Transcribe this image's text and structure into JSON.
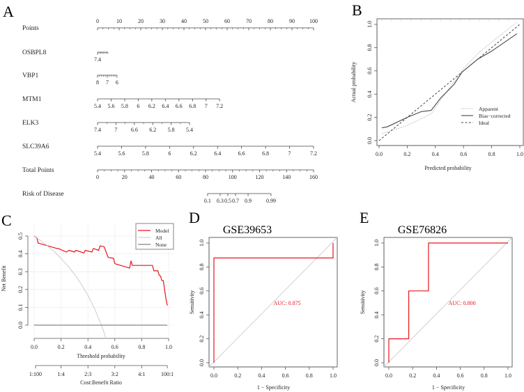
{
  "panel_labels": {
    "A": "A",
    "B": "B",
    "C": "C",
    "D": "D",
    "E": "E"
  },
  "colors": {
    "model": "#e8141b",
    "roc": "#e8141b",
    "diag": "#cccccc",
    "axis": "#444444",
    "all": "#c8c8c8",
    "none": "#999999",
    "apparent": "#b0b0b0",
    "bias": "#333333",
    "ideal": "#444444"
  },
  "chart_data": [
    {
      "type": "nomogram",
      "panel": "A",
      "rows": [
        {
          "name": "Points",
          "scale": "points",
          "labels_above": true,
          "labels": [
            "0",
            "10",
            "20",
            "30",
            "40",
            "50",
            "60",
            "70",
            "80",
            "90",
            "100"
          ],
          "points": [
            0,
            10,
            20,
            30,
            40,
            50,
            60,
            70,
            80,
            90,
            100
          ],
          "minor": [
            2.5,
            5,
            7.5,
            12.5,
            15,
            17.5,
            22.5,
            25,
            27.5,
            32.5,
            35,
            37.5,
            42.5,
            45,
            47.5,
            52.5,
            55,
            57.5,
            62.5,
            65,
            67.5,
            72.5,
            75,
            77.5,
            82.5,
            85,
            87.5,
            92.5,
            95,
            97.5
          ]
        },
        {
          "name": "OSBPL8",
          "scale": "points",
          "labels": [
            "7.4"
          ],
          "points": [
            0
          ],
          "minor": [
            0.7,
            1.4,
            2.1,
            2.8,
            3.5,
            4.2,
            4.8
          ]
        },
        {
          "name": "VBP1",
          "scale": "points",
          "labels": [
            "8",
            "7",
            "6"
          ],
          "points": [
            0,
            4.5,
            9
          ],
          "minor": [
            0.9,
            1.8,
            2.7,
            3.6,
            5.4,
            6.3,
            7.2,
            8.1
          ]
        },
        {
          "name": "MTM1",
          "scale": "points",
          "labels": [
            "5.4",
            "5.6",
            "5.8",
            "6",
            "6.2",
            "6.4",
            "6.6",
            "6.8",
            "7",
            "7.2"
          ],
          "points": [
            0,
            6.28,
            12.56,
            18.84,
            25.12,
            31.4,
            37.68,
            43.96,
            50.24,
            56.5
          ],
          "minor": []
        },
        {
          "name": "ELK3",
          "scale": "points",
          "labels": [
            "7.4",
            "7",
            "6.6",
            "6.2",
            "5.8",
            "5.4"
          ],
          "points": [
            0,
            8.52,
            17.04,
            25.56,
            34.08,
            42.6
          ],
          "minor": [
            4.26,
            12.78,
            21.3,
            29.82,
            38.34
          ]
        },
        {
          "name": "SLC39A6",
          "scale": "points",
          "labels": [
            "5.4",
            "5.6",
            "5.8",
            "6",
            "6.2",
            "6.4",
            "6.6",
            "6.8",
            "7",
            "7.2"
          ],
          "points": [
            0,
            11.11,
            22.22,
            33.33,
            44.44,
            55.56,
            66.67,
            77.78,
            88.89,
            100
          ],
          "minor": []
        },
        {
          "name": "Total Points",
          "scale": "total_points",
          "labels": [
            "0",
            "20",
            "40",
            "60",
            "80",
            "100",
            "120",
            "140",
            "160"
          ],
          "points": [
            0,
            20,
            40,
            60,
            80,
            100,
            120,
            140,
            160
          ],
          "minor": [
            5,
            10,
            15,
            25,
            30,
            35,
            45,
            50,
            55,
            65,
            70,
            75,
            85,
            90,
            95,
            105,
            110,
            115,
            125,
            130,
            135,
            145,
            150,
            155
          ]
        },
        {
          "name": "Risk of Disease",
          "scale": "total_points",
          "labels": [
            "0.1",
            "0.3",
            "0.5",
            "0.7",
            "0.9",
            "0.99"
          ],
          "points": [
            81.5,
            90.8,
            96.5,
            102.2,
            111.5,
            128.5
          ],
          "minor": []
        }
      ],
      "points_range": [
        0,
        100
      ],
      "total_points_range": [
        0,
        160
      ]
    },
    {
      "type": "line",
      "panel": "B",
      "xlabel": "Predicted probability",
      "ylabel": "Actual probability",
      "xlim": [
        0,
        1
      ],
      "ylim": [
        0,
        1
      ],
      "xticks": [
        "0.0",
        "0.2",
        "0.4",
        "0.6",
        "0.8",
        "1.0"
      ],
      "yticks": [
        "0.0",
        "0.2",
        "0.4",
        "0.6",
        "0.8",
        "1.0"
      ],
      "legend_position": "bottom-right",
      "series": [
        {
          "name": "Apparent",
          "style": "dotted",
          "x": [
            0.02,
            0.2,
            0.37,
            0.45,
            0.6,
            0.72,
            0.98
          ],
          "y": [
            0.06,
            0.13,
            0.23,
            0.37,
            0.62,
            0.77,
            1.02
          ]
        },
        {
          "name": "Bias−corrected",
          "style": "solid",
          "x": [
            0.02,
            0.06,
            0.2,
            0.3,
            0.37,
            0.44,
            0.53,
            0.59,
            0.7,
            0.8,
            0.98
          ],
          "y": [
            0.11,
            0.12,
            0.2,
            0.25,
            0.26,
            0.37,
            0.48,
            0.59,
            0.7,
            0.77,
            0.92
          ]
        },
        {
          "name": "Ideal",
          "style": "dashed",
          "x": [
            0,
            1
          ],
          "y": [
            0,
            1
          ]
        }
      ]
    },
    {
      "type": "line",
      "panel": "C",
      "xlabel": "Threshold probability",
      "ylabel": "Net Benefit",
      "xlim": [
        0,
        1
      ],
      "ylim": [
        0,
        0.5
      ],
      "xticks": [
        "0.0",
        "0.2",
        "0.4",
        "0.6",
        "0.8",
        "1.0"
      ],
      "yticks": [
        "0.0",
        "0.1",
        "0.2",
        "0.3",
        "0.4",
        "0.5"
      ],
      "secondary_axis": {
        "label": "Cost:Benefit Ratio",
        "ticks": [
          "1:100",
          "1:4",
          "2:3",
          "3:2",
          "4:1",
          "100:1"
        ],
        "at": [
          0.01,
          0.2,
          0.4,
          0.6,
          0.8,
          0.99
        ]
      },
      "legend_position": "top-right",
      "series": [
        {
          "name": "Model",
          "x": [
            0,
            0.02,
            0.03,
            0.08,
            0.17,
            0.18,
            0.24,
            0.26,
            0.3,
            0.31,
            0.37,
            0.38,
            0.43,
            0.44,
            0.48,
            0.49,
            0.52,
            0.55,
            0.59,
            0.6,
            0.71,
            0.72,
            0.73,
            0.88,
            0.89,
            0.92,
            0.93,
            0.94,
            0.95,
            0.96,
            0.98,
            0.99
          ],
          "y": [
            0.5,
            0.49,
            0.46,
            0.45,
            0.43,
            0.43,
            0.41,
            0.42,
            0.41,
            0.42,
            0.405,
            0.42,
            0.41,
            0.43,
            0.42,
            0.445,
            0.44,
            0.38,
            0.375,
            0.345,
            0.32,
            0.36,
            0.335,
            0.335,
            0.305,
            0.305,
            0.28,
            0.275,
            0.25,
            0.25,
            0.15,
            0.11
          ]
        },
        {
          "name": "All",
          "x": [
            0,
            0.05,
            0.1,
            0.15,
            0.2,
            0.25,
            0.3,
            0.35,
            0.4,
            0.45,
            0.5,
            0.535
          ],
          "y": [
            0.5,
            0.474,
            0.444,
            0.412,
            0.375,
            0.333,
            0.286,
            0.231,
            0.167,
            0.091,
            0,
            -0.075
          ]
        },
        {
          "name": "None",
          "x": [
            0,
            0.99
          ],
          "y": [
            0,
            0
          ]
        }
      ]
    },
    {
      "type": "line",
      "panel": "D",
      "title": "GSE39653",
      "xlabel": "1 − Specificity",
      "ylabel": "Sensitivity",
      "xlim": [
        0,
        1
      ],
      "ylim": [
        0,
        1
      ],
      "xticks": [
        "0.0",
        "0.2",
        "0.4",
        "0.6",
        "0.8",
        "1.0"
      ],
      "yticks": [
        "0.0",
        "0.2",
        "0.4",
        "0.6",
        "0.8",
        "1.0"
      ],
      "auc_label": "AUC: 0.875",
      "series": [
        {
          "name": "ROC",
          "x": [
            0,
            0,
            1,
            1
          ],
          "y": [
            0,
            0.875,
            0.875,
            1
          ]
        }
      ]
    },
    {
      "type": "line",
      "panel": "E",
      "title": "GSE76826",
      "xlabel": "1 − Specificity",
      "ylabel": "Sensitivity",
      "xlim": [
        0,
        1
      ],
      "ylim": [
        0,
        1
      ],
      "xticks": [
        "0.0",
        "0.2",
        "0.4",
        "0.6",
        "0.8",
        "1.0"
      ],
      "yticks": [
        "0.0",
        "0.2",
        "0.4",
        "0.6",
        "0.8",
        "1.0"
      ],
      "auc_label": "AUC: 0.800",
      "series": [
        {
          "name": "ROC",
          "x": [
            0,
            0,
            0.167,
            0.167,
            0.333,
            0.333,
            1
          ],
          "y": [
            0,
            0.2,
            0.2,
            0.6,
            0.6,
            1,
            1
          ]
        }
      ]
    }
  ]
}
